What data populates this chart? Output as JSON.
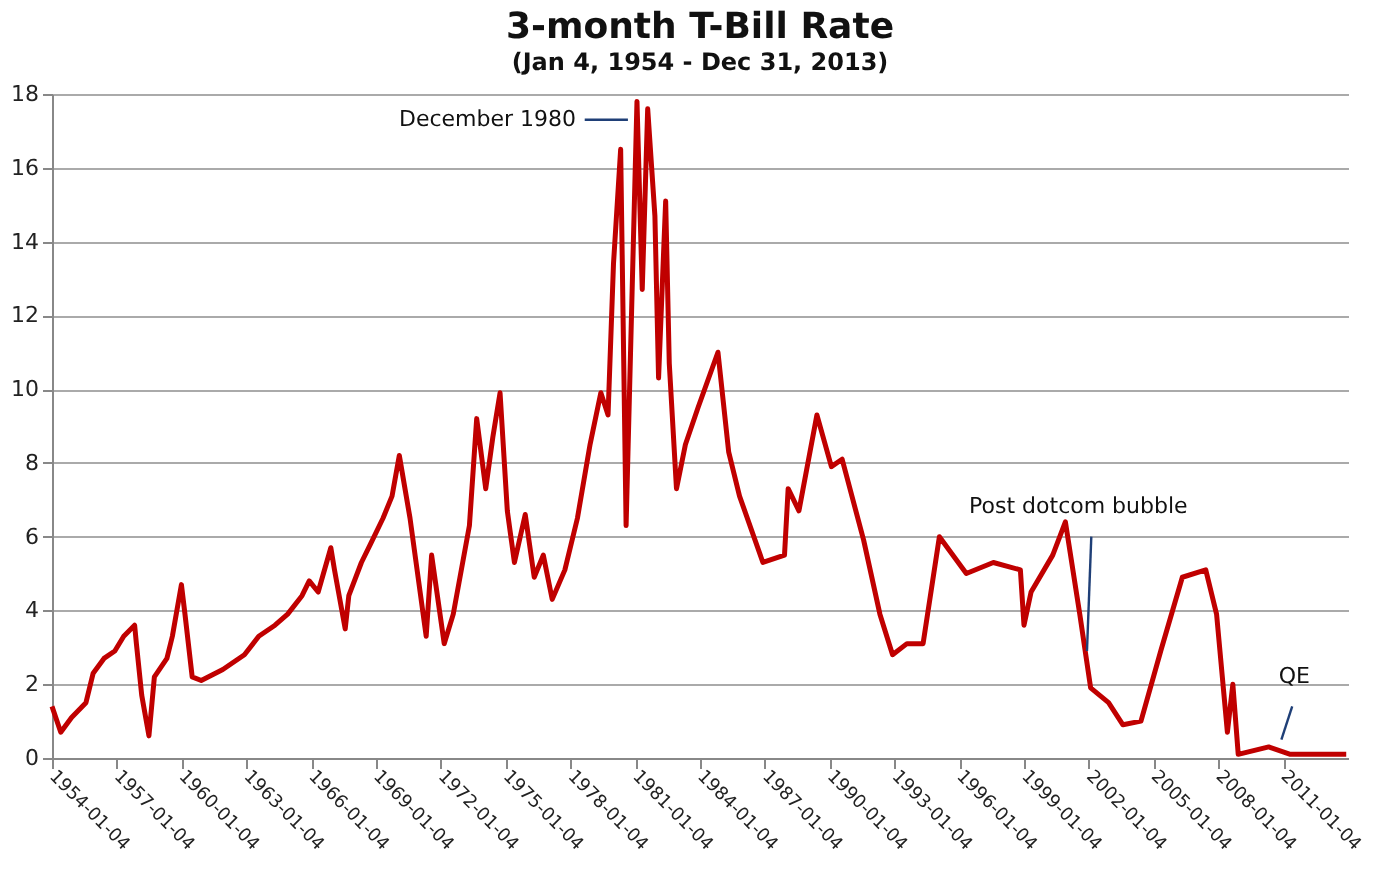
{
  "chart_data": {
    "type": "line",
    "title": "3-month T-Bill Rate",
    "subtitle": "(Jan 4, 1954 - Dec 31, 2013)",
    "x": [
      "1954-01-04",
      "1954-06",
      "1954-12",
      "1955-08",
      "1955-12",
      "1956-06",
      "1956-12",
      "1957-05",
      "1957-11",
      "1957-12",
      "1958-03",
      "1958-07",
      "1958-10",
      "1959-05",
      "1959-08",
      "1960-01",
      "1960-03",
      "1960-07",
      "1960-12",
      "1961-12",
      "1962-12",
      "1963-08",
      "1964-05",
      "1964-12",
      "1965-08",
      "1965-12",
      "1966-05",
      "1966-12",
      "1967-02",
      "1967-08",
      "1967-10",
      "1968-05",
      "1968-10",
      "1969-05",
      "1969-10",
      "1970-02",
      "1970-08",
      "1971-05",
      "1971-08",
      "1972-03",
      "1972-08",
      "1973-05",
      "1973-09",
      "1974-02",
      "1974-06",
      "1974-10",
      "1975-02",
      "1975-06",
      "1975-12",
      "1976-05",
      "1976-10",
      "1977-03",
      "1977-10",
      "1978-05",
      "1978-12",
      "1979-06",
      "1979-10",
      "1980-01",
      "1980-05",
      "1980-08",
      "1981-02",
      "1981-05",
      "1981-08",
      "1981-12",
      "1982-02",
      "1982-06",
      "1982-08",
      "1982-12",
      "1983-05",
      "1983-12",
      "1984-11",
      "1985-05",
      "1985-11",
      "1986-12",
      "1987-12",
      "1988-02",
      "1988-08",
      "1989-06",
      "1990-02",
      "1990-08",
      "1991-08",
      "1992-05",
      "1992-12",
      "1993-08",
      "1994-05",
      "1995-02",
      "1996-05",
      "1997-08",
      "1998-11",
      "1999-01",
      "1999-05",
      "2000-05",
      "2000-12",
      "2001-08",
      "2002-02",
      "2002-12",
      "2003-08",
      "2004-06",
      "2005-05",
      "2006-05",
      "2007-06",
      "2007-12",
      "2008-06",
      "2008-09",
      "2008-12",
      "2010-05",
      "2011-05",
      "2012-08",
      "2013-12"
    ],
    "series": [
      {
        "color": "#c00000",
        "values": [
          1.4,
          0.7,
          1.1,
          1.5,
          2.3,
          2.7,
          2.9,
          3.3,
          3.6,
          3.1,
          1.7,
          0.6,
          2.2,
          2.7,
          3.3,
          4.7,
          3.9,
          2.2,
          2.1,
          2.4,
          2.8,
          3.3,
          3.6,
          3.9,
          4.4,
          4.8,
          4.5,
          5.7,
          5.1,
          3.5,
          4.4,
          5.3,
          5.8,
          6.5,
          7.1,
          8.2,
          6.5,
          3.3,
          5.5,
          3.1,
          3.9,
          6.3,
          9.2,
          7.3,
          8.7,
          9.9,
          6.7,
          5.3,
          6.6,
          4.9,
          5.5,
          4.3,
          5.1,
          6.5,
          8.5,
          9.9,
          9.3,
          13.4,
          16.5,
          6.3,
          17.8,
          12.7,
          17.6,
          14.7,
          10.3,
          15.1,
          10.7,
          7.3,
          8.5,
          9.5,
          11.0,
          8.3,
          7.1,
          5.3,
          5.5,
          7.3,
          6.7,
          9.3,
          7.9,
          8.1,
          5.9,
          3.9,
          2.8,
          3.1,
          3.1,
          6.0,
          5.0,
          5.3,
          5.1,
          3.6,
          4.5,
          5.5,
          6.4,
          3.9,
          1.9,
          1.5,
          0.9,
          1.0,
          2.9,
          4.9,
          5.1,
          3.9,
          0.7,
          2.0,
          0.1,
          0.3,
          0.1,
          0.1,
          0.1
        ]
      }
    ],
    "xlim": [
      "1954-01-04",
      "2013-12-31"
    ],
    "xticks": [
      "1954-01-04",
      "1957-01-04",
      "1960-01-04",
      "1963-01-04",
      "1966-01-04",
      "1969-01-04",
      "1972-01-04",
      "1975-01-04",
      "1978-01-04",
      "1981-01-04",
      "1984-01-04",
      "1987-01-04",
      "1990-01-04",
      "1993-01-04",
      "1996-01-04",
      "1999-01-04",
      "2002-01-04",
      "2005-01-04",
      "2008-01-04",
      "2011-01-04"
    ],
    "ylim": [
      0,
      18
    ],
    "yticks": [
      0,
      2,
      4,
      6,
      8,
      10,
      12,
      14,
      16,
      18
    ],
    "grid": "y",
    "line_style": "solid",
    "marker": "none",
    "annotations": [
      {
        "text": "December 1980",
        "x": "1980-09",
        "y": 17.3
      },
      {
        "text": "Post  dotcom bubble",
        "x": "2001-12",
        "y": 2.9
      },
      {
        "text": "QE",
        "x": "2010-12",
        "y": 0.5
      }
    ]
  }
}
